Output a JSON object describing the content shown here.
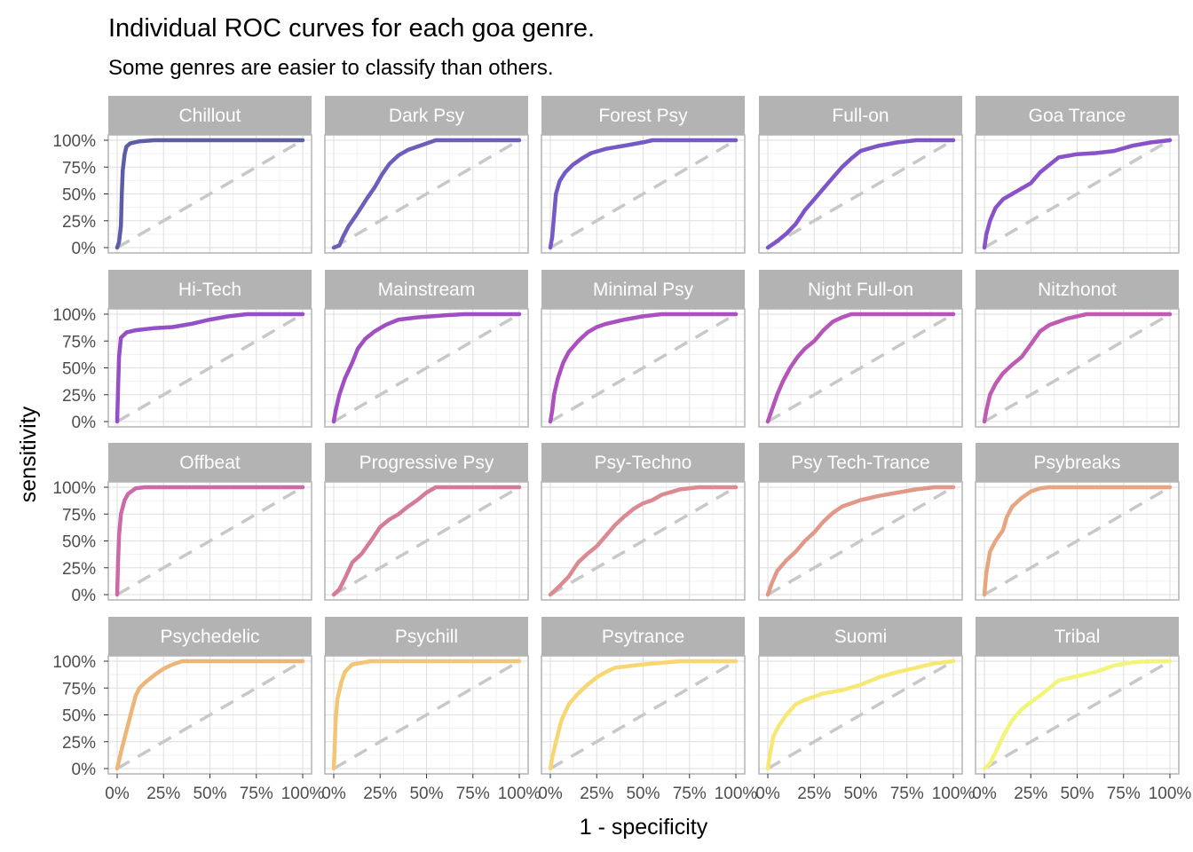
{
  "chart_data": {
    "type": "line",
    "title": "Individual ROC curves for each goa genre.",
    "subtitle": "Some genres are easier to classify than others.",
    "xlabel": "1 - specificity",
    "ylabel": "sensitivity",
    "xlim": [
      0,
      1
    ],
    "ylim": [
      0,
      1
    ],
    "x_ticks": [
      0,
      0.25,
      0.5,
      0.75,
      1
    ],
    "y_ticks": [
      0,
      0.25,
      0.5,
      0.75,
      1
    ],
    "x_tick_labels": [
      "0%",
      "25%",
      "50%",
      "75%",
      "100%"
    ],
    "y_tick_labels": [
      "0%",
      "25%",
      "50%",
      "75%",
      "100%"
    ],
    "grid": true,
    "reference_line": {
      "x": [
        0,
        1
      ],
      "y": [
        0,
        1
      ],
      "style": "dashed",
      "color": "#c8c8c8"
    },
    "facets": [
      {
        "name": "Chillout",
        "color": "#5b5ea6",
        "points": [
          [
            0,
            0
          ],
          [
            0.01,
            0.05
          ],
          [
            0.02,
            0.2
          ],
          [
            0.025,
            0.5
          ],
          [
            0.03,
            0.72
          ],
          [
            0.04,
            0.87
          ],
          [
            0.05,
            0.94
          ],
          [
            0.07,
            0.97
          ],
          [
            0.12,
            0.99
          ],
          [
            0.2,
            1
          ],
          [
            1,
            1
          ]
        ]
      },
      {
        "name": "Dark Psy",
        "color": "#6b5fbb",
        "points": [
          [
            0,
            0
          ],
          [
            0.03,
            0.02
          ],
          [
            0.05,
            0.1
          ],
          [
            0.08,
            0.2
          ],
          [
            0.12,
            0.3
          ],
          [
            0.15,
            0.38
          ],
          [
            0.18,
            0.46
          ],
          [
            0.22,
            0.56
          ],
          [
            0.26,
            0.68
          ],
          [
            0.3,
            0.78
          ],
          [
            0.35,
            0.86
          ],
          [
            0.4,
            0.91
          ],
          [
            0.45,
            0.94
          ],
          [
            0.5,
            0.97
          ],
          [
            0.55,
            1
          ],
          [
            1,
            1
          ]
        ]
      },
      {
        "name": "Forest Psy",
        "color": "#7559c4",
        "points": [
          [
            0,
            0
          ],
          [
            0.01,
            0.1
          ],
          [
            0.02,
            0.3
          ],
          [
            0.03,
            0.5
          ],
          [
            0.05,
            0.62
          ],
          [
            0.08,
            0.7
          ],
          [
            0.12,
            0.77
          ],
          [
            0.17,
            0.83
          ],
          [
            0.22,
            0.88
          ],
          [
            0.3,
            0.92
          ],
          [
            0.4,
            0.95
          ],
          [
            0.5,
            0.98
          ],
          [
            0.55,
            1
          ],
          [
            1,
            1
          ]
        ]
      },
      {
        "name": "Full-on",
        "color": "#7e55c8",
        "points": [
          [
            0,
            0
          ],
          [
            0.05,
            0.06
          ],
          [
            0.1,
            0.13
          ],
          [
            0.15,
            0.22
          ],
          [
            0.2,
            0.35
          ],
          [
            0.25,
            0.45
          ],
          [
            0.3,
            0.55
          ],
          [
            0.35,
            0.65
          ],
          [
            0.4,
            0.75
          ],
          [
            0.45,
            0.83
          ],
          [
            0.5,
            0.9
          ],
          [
            0.6,
            0.95
          ],
          [
            0.7,
            0.98
          ],
          [
            0.8,
            1
          ],
          [
            1,
            1
          ]
        ]
      },
      {
        "name": "Goa Trance",
        "color": "#8a52c8",
        "points": [
          [
            0,
            0
          ],
          [
            0.01,
            0.12
          ],
          [
            0.03,
            0.25
          ],
          [
            0.06,
            0.37
          ],
          [
            0.1,
            0.45
          ],
          [
            0.15,
            0.5
          ],
          [
            0.2,
            0.55
          ],
          [
            0.25,
            0.6
          ],
          [
            0.3,
            0.7
          ],
          [
            0.35,
            0.77
          ],
          [
            0.4,
            0.84
          ],
          [
            0.5,
            0.87
          ],
          [
            0.6,
            0.88
          ],
          [
            0.7,
            0.9
          ],
          [
            0.8,
            0.95
          ],
          [
            0.9,
            0.98
          ],
          [
            1,
            1
          ]
        ]
      },
      {
        "name": "Hi-Tech",
        "color": "#9450c6",
        "points": [
          [
            0,
            0
          ],
          [
            0.005,
            0.3
          ],
          [
            0.01,
            0.6
          ],
          [
            0.02,
            0.78
          ],
          [
            0.05,
            0.83
          ],
          [
            0.1,
            0.85
          ],
          [
            0.2,
            0.87
          ],
          [
            0.3,
            0.88
          ],
          [
            0.4,
            0.91
          ],
          [
            0.5,
            0.95
          ],
          [
            0.6,
            0.98
          ],
          [
            0.7,
            1
          ],
          [
            1,
            1
          ]
        ]
      },
      {
        "name": "Mainstream",
        "color": "#a04fc3",
        "points": [
          [
            0,
            0
          ],
          [
            0.01,
            0.1
          ],
          [
            0.03,
            0.25
          ],
          [
            0.06,
            0.4
          ],
          [
            0.1,
            0.55
          ],
          [
            0.13,
            0.68
          ],
          [
            0.17,
            0.77
          ],
          [
            0.22,
            0.84
          ],
          [
            0.28,
            0.9
          ],
          [
            0.35,
            0.95
          ],
          [
            0.45,
            0.97
          ],
          [
            0.6,
            0.99
          ],
          [
            0.7,
            1
          ],
          [
            1,
            1
          ]
        ]
      },
      {
        "name": "Minimal Psy",
        "color": "#ac50bf",
        "points": [
          [
            0,
            0
          ],
          [
            0.01,
            0.1
          ],
          [
            0.02,
            0.25
          ],
          [
            0.04,
            0.4
          ],
          [
            0.07,
            0.55
          ],
          [
            0.1,
            0.65
          ],
          [
            0.15,
            0.75
          ],
          [
            0.2,
            0.83
          ],
          [
            0.25,
            0.88
          ],
          [
            0.3,
            0.91
          ],
          [
            0.4,
            0.95
          ],
          [
            0.5,
            0.98
          ],
          [
            0.6,
            1
          ],
          [
            1,
            1
          ]
        ]
      },
      {
        "name": "Night Full-on",
        "color": "#b655b9",
        "points": [
          [
            0,
            0
          ],
          [
            0.02,
            0.1
          ],
          [
            0.05,
            0.25
          ],
          [
            0.08,
            0.37
          ],
          [
            0.12,
            0.5
          ],
          [
            0.16,
            0.6
          ],
          [
            0.2,
            0.68
          ],
          [
            0.25,
            0.75
          ],
          [
            0.3,
            0.85
          ],
          [
            0.35,
            0.93
          ],
          [
            0.4,
            0.97
          ],
          [
            0.45,
            1
          ],
          [
            1,
            1
          ]
        ]
      },
      {
        "name": "Nitzhonot",
        "color": "#c05bb3",
        "points": [
          [
            0,
            0
          ],
          [
            0.01,
            0.1
          ],
          [
            0.03,
            0.25
          ],
          [
            0.06,
            0.35
          ],
          [
            0.1,
            0.45
          ],
          [
            0.15,
            0.53
          ],
          [
            0.2,
            0.6
          ],
          [
            0.25,
            0.72
          ],
          [
            0.3,
            0.84
          ],
          [
            0.35,
            0.9
          ],
          [
            0.45,
            0.96
          ],
          [
            0.55,
            1
          ],
          [
            1,
            1
          ]
        ]
      },
      {
        "name": "Offbeat",
        "color": "#cb6aa6",
        "points": [
          [
            0,
            0
          ],
          [
            0.005,
            0.3
          ],
          [
            0.01,
            0.55
          ],
          [
            0.02,
            0.75
          ],
          [
            0.04,
            0.88
          ],
          [
            0.06,
            0.94
          ],
          [
            0.1,
            0.99
          ],
          [
            0.15,
            1
          ],
          [
            1,
            1
          ]
        ]
      },
      {
        "name": "Progressive Psy",
        "color": "#d47a9b",
        "points": [
          [
            0,
            0
          ],
          [
            0.03,
            0.05
          ],
          [
            0.06,
            0.15
          ],
          [
            0.1,
            0.3
          ],
          [
            0.15,
            0.38
          ],
          [
            0.2,
            0.5
          ],
          [
            0.25,
            0.63
          ],
          [
            0.3,
            0.7
          ],
          [
            0.35,
            0.75
          ],
          [
            0.4,
            0.82
          ],
          [
            0.45,
            0.88
          ],
          [
            0.5,
            0.95
          ],
          [
            0.55,
            1
          ],
          [
            1,
            1
          ]
        ]
      },
      {
        "name": "Psy-Techno",
        "color": "#db8a92",
        "points": [
          [
            0,
            0
          ],
          [
            0.05,
            0.08
          ],
          [
            0.1,
            0.17
          ],
          [
            0.15,
            0.3
          ],
          [
            0.2,
            0.38
          ],
          [
            0.25,
            0.45
          ],
          [
            0.3,
            0.55
          ],
          [
            0.35,
            0.65
          ],
          [
            0.4,
            0.73
          ],
          [
            0.45,
            0.8
          ],
          [
            0.5,
            0.85
          ],
          [
            0.55,
            0.88
          ],
          [
            0.6,
            0.93
          ],
          [
            0.7,
            0.98
          ],
          [
            0.8,
            1
          ],
          [
            1,
            1
          ]
        ]
      },
      {
        "name": "Psy Tech-Trance",
        "color": "#e19889",
        "points": [
          [
            0,
            0
          ],
          [
            0.02,
            0.1
          ],
          [
            0.05,
            0.22
          ],
          [
            0.1,
            0.32
          ],
          [
            0.15,
            0.4
          ],
          [
            0.2,
            0.5
          ],
          [
            0.25,
            0.58
          ],
          [
            0.3,
            0.68
          ],
          [
            0.35,
            0.76
          ],
          [
            0.4,
            0.82
          ],
          [
            0.5,
            0.88
          ],
          [
            0.6,
            0.92
          ],
          [
            0.7,
            0.95
          ],
          [
            0.8,
            0.98
          ],
          [
            0.9,
            1
          ],
          [
            1,
            1
          ]
        ]
      },
      {
        "name": "Psybreaks",
        "color": "#e8a680",
        "points": [
          [
            0,
            0
          ],
          [
            0.01,
            0.2
          ],
          [
            0.03,
            0.4
          ],
          [
            0.06,
            0.5
          ],
          [
            0.1,
            0.6
          ],
          [
            0.12,
            0.72
          ],
          [
            0.15,
            0.82
          ],
          [
            0.2,
            0.9
          ],
          [
            0.25,
            0.96
          ],
          [
            0.3,
            0.99
          ],
          [
            0.35,
            1
          ],
          [
            1,
            1
          ]
        ]
      },
      {
        "name": "Psychedelic",
        "color": "#eeb578",
        "points": [
          [
            0,
            0
          ],
          [
            0.02,
            0.15
          ],
          [
            0.05,
            0.35
          ],
          [
            0.08,
            0.55
          ],
          [
            0.1,
            0.68
          ],
          [
            0.12,
            0.75
          ],
          [
            0.15,
            0.8
          ],
          [
            0.2,
            0.87
          ],
          [
            0.25,
            0.93
          ],
          [
            0.3,
            0.97
          ],
          [
            0.35,
            1
          ],
          [
            1,
            1
          ]
        ]
      },
      {
        "name": "Psychill",
        "color": "#f3c675",
        "points": [
          [
            0,
            0
          ],
          [
            0.005,
            0.2
          ],
          [
            0.01,
            0.45
          ],
          [
            0.02,
            0.65
          ],
          [
            0.04,
            0.8
          ],
          [
            0.06,
            0.9
          ],
          [
            0.1,
            0.97
          ],
          [
            0.2,
            1
          ],
          [
            1,
            1
          ]
        ]
      },
      {
        "name": "Psytrance",
        "color": "#f7d774",
        "points": [
          [
            0,
            0
          ],
          [
            0.01,
            0.1
          ],
          [
            0.03,
            0.25
          ],
          [
            0.06,
            0.45
          ],
          [
            0.1,
            0.6
          ],
          [
            0.15,
            0.7
          ],
          [
            0.2,
            0.78
          ],
          [
            0.25,
            0.85
          ],
          [
            0.3,
            0.9
          ],
          [
            0.35,
            0.94
          ],
          [
            0.5,
            0.97
          ],
          [
            0.7,
            1
          ],
          [
            1,
            1
          ]
        ]
      },
      {
        "name": "Suomi",
        "color": "#f7e876",
        "points": [
          [
            0,
            0
          ],
          [
            0.01,
            0.12
          ],
          [
            0.03,
            0.3
          ],
          [
            0.06,
            0.4
          ],
          [
            0.1,
            0.5
          ],
          [
            0.15,
            0.6
          ],
          [
            0.2,
            0.64
          ],
          [
            0.3,
            0.7
          ],
          [
            0.4,
            0.73
          ],
          [
            0.5,
            0.78
          ],
          [
            0.6,
            0.85
          ],
          [
            0.7,
            0.9
          ],
          [
            0.8,
            0.94
          ],
          [
            0.9,
            0.98
          ],
          [
            1,
            1
          ]
        ]
      },
      {
        "name": "Tribal",
        "color": "#f2f57a",
        "points": [
          [
            0,
            0
          ],
          [
            0.03,
            0.05
          ],
          [
            0.06,
            0.15
          ],
          [
            0.1,
            0.3
          ],
          [
            0.15,
            0.45
          ],
          [
            0.2,
            0.55
          ],
          [
            0.25,
            0.62
          ],
          [
            0.3,
            0.68
          ],
          [
            0.35,
            0.75
          ],
          [
            0.4,
            0.82
          ],
          [
            0.5,
            0.86
          ],
          [
            0.6,
            0.9
          ],
          [
            0.7,
            0.96
          ],
          [
            0.8,
            0.99
          ],
          [
            0.9,
            1
          ],
          [
            1,
            1
          ]
        ]
      }
    ]
  }
}
